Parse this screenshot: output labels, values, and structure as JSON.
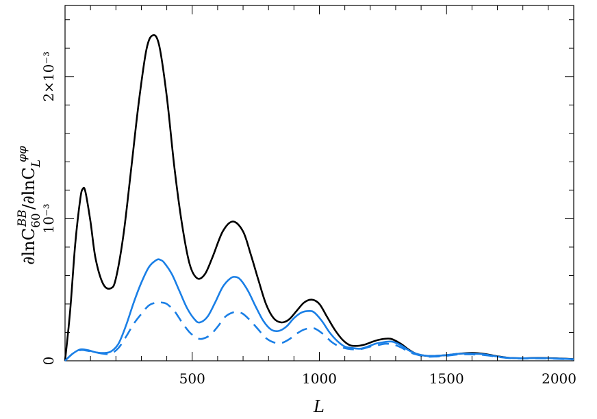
{
  "chart_data": {
    "type": "line",
    "title": "",
    "xlabel": "L",
    "ylabel": {
      "prefix": "∂lnC",
      "sub1": "60",
      "sup1": "BB",
      "middle": "/∂lnC",
      "sub2": "L",
      "sup2": "φφ"
    },
    "xlim": [
      0,
      2000
    ],
    "ylim": [
      0,
      0.0025
    ],
    "xticks": [
      {
        "value": 500,
        "label": "500"
      },
      {
        "value": 1000,
        "label": "1000"
      },
      {
        "value": 1500,
        "label": "1500"
      },
      {
        "value": 2000,
        "label": "2000"
      }
    ],
    "yticks": [
      {
        "value": 0,
        "label": "0"
      },
      {
        "value": 0.001,
        "label": "10⁻³"
      },
      {
        "value": 0.002,
        "label": "2×10⁻³"
      }
    ],
    "grid": false,
    "series": [
      {
        "color": "#000000",
        "dash": "solid",
        "x": [
          0,
          20,
          40,
          60,
          70,
          80,
          100,
          120,
          150,
          180,
          200,
          230,
          260,
          290,
          320,
          345,
          370,
          400,
          430,
          460,
          490,
          520,
          550,
          580,
          620,
          660,
          700,
          730,
          760,
          790,
          820,
          850,
          880,
          910,
          940,
          970,
          1000,
          1030,
          1060,
          1090,
          1120,
          1150,
          1180,
          1210,
          1240,
          1280,
          1320,
          1350,
          1380,
          1420,
          1460,
          1500,
          1550,
          1600,
          1650,
          1700,
          1750,
          1800,
          1850,
          1900,
          1950,
          2000
        ],
        "y": [
          0,
          0.00035,
          0.00082,
          0.00114,
          0.00121,
          0.00119,
          0.00098,
          0.00072,
          0.00054,
          0.00051,
          0.00058,
          0.00089,
          0.00135,
          0.00182,
          0.00219,
          0.00229,
          0.00222,
          0.00186,
          0.00136,
          0.00096,
          0.00068,
          0.00058,
          0.00061,
          0.00073,
          0.00091,
          0.00098,
          0.00091,
          0.00075,
          0.00057,
          0.0004,
          0.0003,
          0.00027,
          0.00029,
          0.00035,
          0.00041,
          0.00043,
          0.0004,
          0.00031,
          0.00022,
          0.00015,
          0.00011,
          0.000105,
          0.000115,
          0.000135,
          0.00015,
          0.000155,
          0.00012,
          8e-05,
          5e-05,
          3.5e-05,
          3.5e-05,
          4e-05,
          5e-05,
          5.5e-05,
          4.8e-05,
          3.2e-05,
          2e-05,
          1.8e-05,
          2e-05,
          1.9e-05,
          1.6e-05,
          1.2e-05
        ]
      },
      {
        "color": "#1a7fe6",
        "dash": "solid",
        "x": [
          0,
          30,
          60,
          90,
          120,
          150,
          180,
          210,
          240,
          270,
          300,
          330,
          360,
          375,
          390,
          420,
          450,
          480,
          510,
          530,
          560,
          590,
          620,
          650,
          670,
          690,
          720,
          750,
          780,
          810,
          840,
          870,
          900,
          930,
          960,
          980,
          1010,
          1040,
          1070,
          1100,
          1130,
          1160,
          1190,
          1220,
          1250,
          1285,
          1320,
          1350,
          1380,
          1420,
          1460,
          1500,
          1550,
          1600,
          1650,
          1700,
          1750,
          1800,
          1850,
          1900,
          1950,
          2000
        ],
        "y": [
          0,
          5e-05,
          8e-05,
          7.5e-05,
          6e-05,
          5.5e-05,
          6.5e-05,
          0.00012,
          0.00025,
          0.00041,
          0.00055,
          0.00066,
          0.00071,
          0.00071,
          0.00069,
          0.00061,
          0.00049,
          0.00037,
          0.00029,
          0.00027,
          0.00031,
          0.00041,
          0.00052,
          0.00058,
          0.00059,
          0.00057,
          0.00049,
          0.00038,
          0.00028,
          0.00022,
          0.00021,
          0.00024,
          0.0003,
          0.00034,
          0.00035,
          0.00034,
          0.00028,
          0.0002,
          0.00014,
          0.0001,
          9e-05,
          8.5e-05,
          0.0001,
          0.00012,
          0.00013,
          0.000135,
          0.00011,
          7.5e-05,
          5e-05,
          3.5e-05,
          3.5e-05,
          4e-05,
          5e-05,
          5e-05,
          4.5e-05,
          3e-05,
          2e-05,
          1.8e-05,
          1.9e-05,
          1.8e-05,
          1.5e-05,
          1.1e-05
        ]
      },
      {
        "color": "#1a7fe6",
        "dash": "dashed",
        "x": [
          0,
          30,
          60,
          90,
          120,
          150,
          180,
          210,
          240,
          270,
          300,
          330,
          360,
          380,
          400,
          430,
          460,
          490,
          520,
          540,
          570,
          600,
          630,
          660,
          680,
          700,
          730,
          760,
          790,
          820,
          850,
          880,
          910,
          940,
          970,
          990,
          1020,
          1050,
          1080,
          1110,
          1140,
          1170,
          1200,
          1230,
          1260,
          1290,
          1320,
          1350,
          1380,
          1420,
          1460,
          1500,
          1550,
          1600,
          1650,
          1700,
          1750,
          1800,
          1850,
          1900,
          1950,
          2000
        ],
        "y": [
          0,
          5e-05,
          7.5e-05,
          7e-05,
          6e-05,
          5e-05,
          5e-05,
          9e-05,
          0.00017,
          0.00026,
          0.00033,
          0.00039,
          0.00041,
          0.00041,
          0.0004,
          0.00035,
          0.00027,
          0.0002,
          0.00016,
          0.000155,
          0.00018,
          0.00024,
          0.00031,
          0.00034,
          0.00034,
          0.00033,
          0.00028,
          0.00022,
          0.00016,
          0.00013,
          0.000125,
          0.00015,
          0.00019,
          0.00022,
          0.00023,
          0.00022,
          0.00018,
          0.00013,
          0.0001,
          8.5e-05,
          8e-05,
          8.5e-05,
          0.0001,
          0.00011,
          0.00012,
          0.000115,
          9.5e-05,
          6.5e-05,
          4.5e-05,
          3e-05,
          3e-05,
          3.5e-05,
          4.5e-05,
          4.5e-05,
          4e-05,
          2.8e-05,
          1.8e-05,
          1.6e-05,
          1.7e-05,
          1.6e-05,
          1.3e-05,
          1e-05
        ]
      }
    ]
  }
}
